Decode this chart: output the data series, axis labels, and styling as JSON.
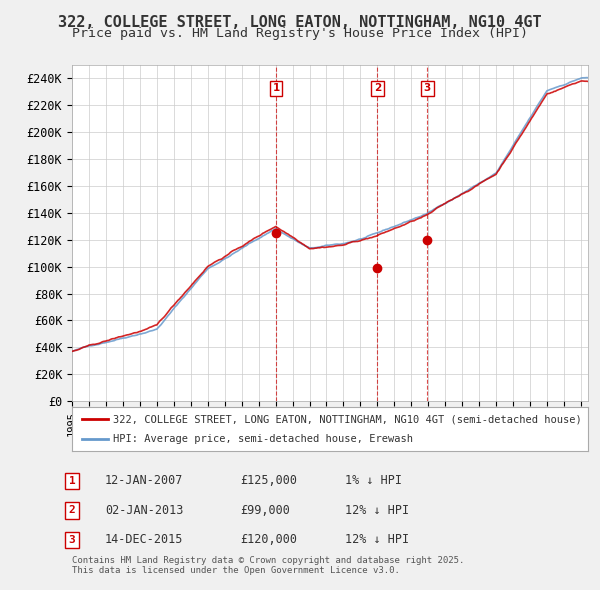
{
  "title": "322, COLLEGE STREET, LONG EATON, NOTTINGHAM, NG10 4GT",
  "subtitle": "Price paid vs. HM Land Registry's House Price Index (HPI)",
  "ylabel": "",
  "ylim": [
    0,
    250000
  ],
  "yticks": [
    0,
    20000,
    40000,
    60000,
    80000,
    100000,
    120000,
    140000,
    160000,
    180000,
    200000,
    220000,
    240000
  ],
  "ytick_labels": [
    "£0",
    "£20K",
    "£40K",
    "£60K",
    "£80K",
    "£100K",
    "£120K",
    "£140K",
    "£160K",
    "£180K",
    "£200K",
    "£220K",
    "£240K"
  ],
  "bg_color": "#f0f0f0",
  "plot_bg_color": "#ffffff",
  "grid_color": "#cccccc",
  "red_color": "#cc0000",
  "blue_color": "#6699cc",
  "marker_color_red": "#cc0000",
  "marker_color_blue": "#6699cc",
  "legend_label_red": "322, COLLEGE STREET, LONG EATON, NOTTINGHAM, NG10 4GT (semi-detached house)",
  "legend_label_blue": "HPI: Average price, semi-detached house, Erewash",
  "sale_dates": [
    "2007-01-12",
    "2013-01-02",
    "2015-12-14"
  ],
  "sale_prices": [
    125000,
    99000,
    120000
  ],
  "sale_labels": [
    "1",
    "2",
    "3"
  ],
  "table_rows": [
    [
      "1",
      "12-JAN-2007",
      "£125,000",
      "1% ↓ HPI"
    ],
    [
      "2",
      "02-JAN-2013",
      "£99,000",
      "12% ↓ HPI"
    ],
    [
      "3",
      "14-DEC-2015",
      "£120,000",
      "12% ↓ HPI"
    ]
  ],
  "footnote": "Contains HM Land Registry data © Crown copyright and database right 2025.\nThis data is licensed under the Open Government Licence v3.0.",
  "title_fontsize": 11,
  "subtitle_fontsize": 9.5,
  "tick_fontsize": 8.5
}
